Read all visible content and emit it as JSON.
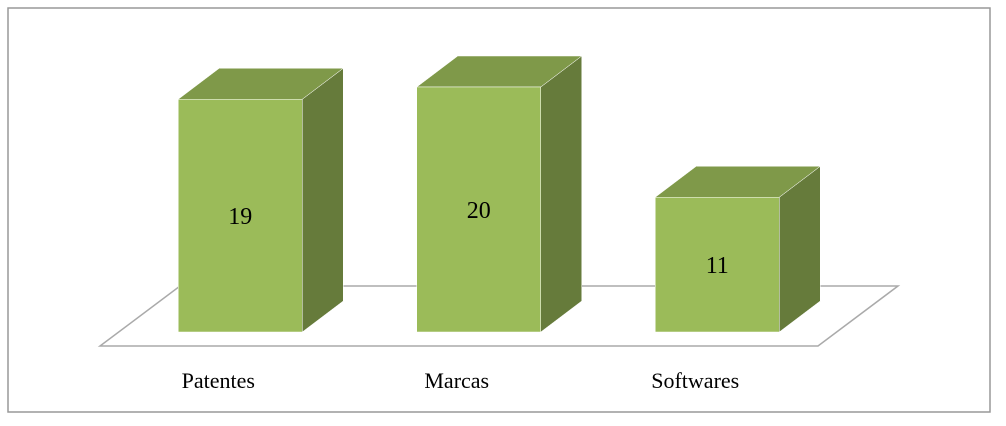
{
  "chart_data": {
    "type": "bar3d",
    "categories": [
      "Patentes",
      "Marcas",
      "Softwares"
    ],
    "values": [
      19,
      20,
      11
    ],
    "color": "#9bbb59"
  }
}
